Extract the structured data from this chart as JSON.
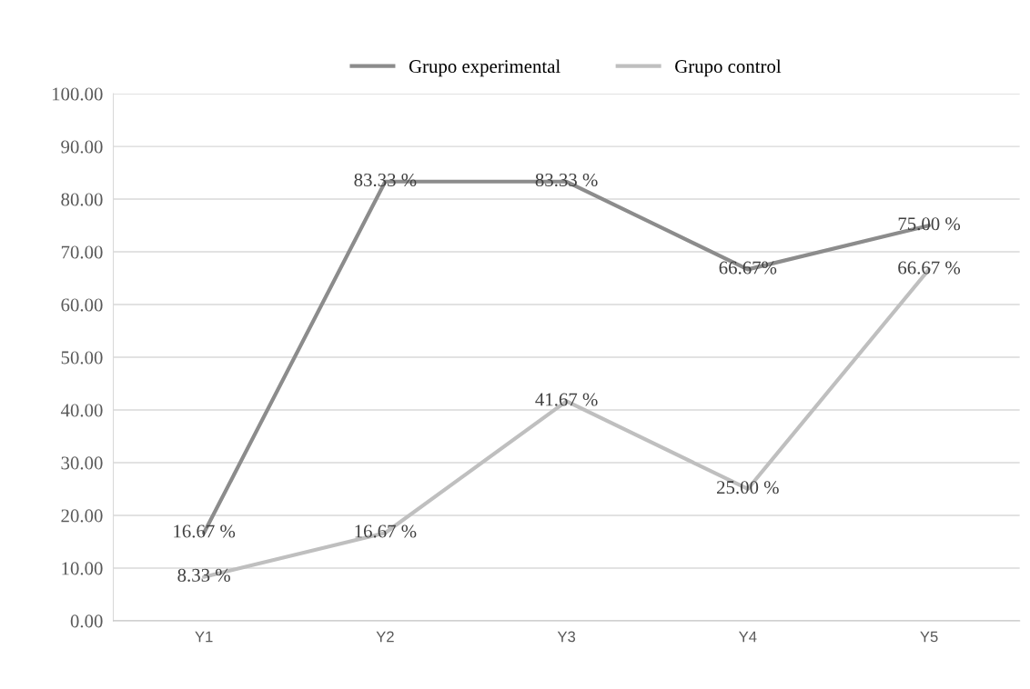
{
  "chart_data": {
    "type": "line",
    "categories": [
      "Y1",
      "Y2",
      "Y3",
      "Y4",
      "Y5"
    ],
    "series": [
      {
        "name": "Grupo experimental",
        "color": "#8c8c8c",
        "values": [
          16.67,
          83.33,
          83.33,
          66.67,
          75.0
        ],
        "value_labels": [
          "16.67 %",
          "83.33 %",
          "83.33 %",
          "66.67%",
          "75.00 %"
        ]
      },
      {
        "name": "Grupo control",
        "color": "#bfbfbf",
        "values": [
          8.33,
          16.67,
          41.67,
          25.0,
          66.67
        ],
        "value_labels": [
          "8.33 %",
          "16.67 %",
          "41.67 %",
          "25.00 %",
          "66.67 %"
        ]
      }
    ],
    "ylim": [
      0,
      100
    ],
    "yticks": [
      {
        "value": 0,
        "label": "0.00"
      },
      {
        "value": 10,
        "label": "10.00"
      },
      {
        "value": 20,
        "label": "20.00"
      },
      {
        "value": 30,
        "label": "30.00"
      },
      {
        "value": 40,
        "label": "40.00"
      },
      {
        "value": 50,
        "label": "50.00"
      },
      {
        "value": 60,
        "label": "60.00"
      },
      {
        "value": 70,
        "label": "70.00"
      },
      {
        "value": 80,
        "label": "80.00"
      },
      {
        "value": 90,
        "label": "90.00"
      },
      {
        "value": 100,
        "label": "100.00"
      }
    ],
    "grid": "y",
    "legend": "top",
    "marker": "none",
    "line_style": "solid"
  }
}
